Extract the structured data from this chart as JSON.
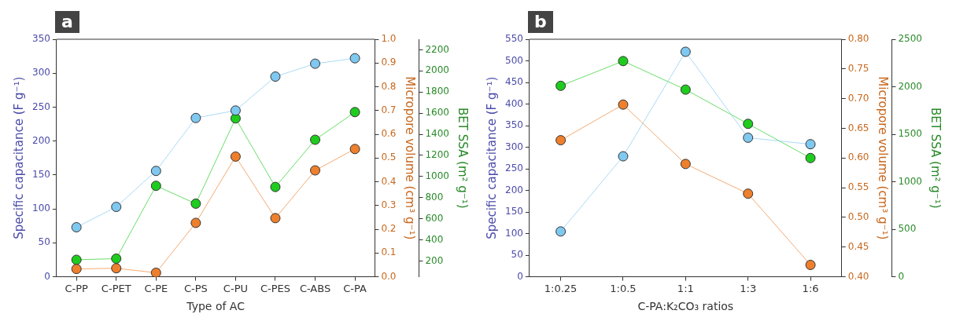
{
  "chart_data": [
    {
      "type": "line",
      "title": "a",
      "xlabel": "Type of AC",
      "ylabel": "Specific capacitance (F g⁻¹)",
      "y2label": "Micropore volume (cm³ g⁻¹)",
      "y3label": "BET SSA (m² g⁻¹)",
      "categories": [
        "C-PP",
        "C-PET",
        "C-PE",
        "C-PS",
        "C-PU",
        "C-PES",
        "C-ABS",
        "C-PA"
      ],
      "series": [
        {
          "color": "#7fc8f0",
          "axis": "y",
          "values": [
            73,
            103,
            156,
            234,
            245,
            295,
            314,
            322
          ]
        },
        {
          "color": "#ee7f2c",
          "axis": "y2",
          "values": [
            0.033,
            0.036,
            0.017,
            0.227,
            0.506,
            0.247,
            0.448,
            0.538
          ]
        },
        {
          "color": "#1ecc1e",
          "axis": "y3",
          "values": [
            211,
            222,
            912,
            743,
            1550,
            901,
            1348,
            1610
          ]
        }
      ],
      "ylim": [
        0,
        350
      ],
      "yticks": [
        0,
        50,
        100,
        150,
        200,
        250,
        300,
        350
      ],
      "y2lim": [
        0,
        1
      ],
      "y2ticks": [
        {
          "value": 0,
          "label": "0.0"
        },
        0.1,
        0.2,
        0.3,
        0.4,
        0.5,
        0.6,
        0.7,
        0.8,
        0.9,
        {
          "value": 1,
          "label": "1.0"
        }
      ],
      "y3lim": [
        50,
        2300
      ],
      "y3ticks": [
        200,
        400,
        600,
        800,
        1000,
        1200,
        1400,
        1600,
        1800,
        2000,
        2200
      ],
      "grid": false,
      "legend": false,
      "marker": "circle",
      "line_style": "solid"
    },
    {
      "type": "line",
      "title": "b",
      "xlabel": "C-PA:K₂CO₃ ratios",
      "ylabel": "Specific capacitance (F g⁻¹)",
      "y2label": "Micropore volume (cm³ g⁻¹)",
      "y3label": "BET SSA (m² g⁻¹)",
      "categories": [
        "1:0.25",
        "1:0.5",
        "1:1",
        "1:3",
        "1:6"
      ],
      "series": [
        {
          "color": "#7fc8f0",
          "axis": "y",
          "values": [
            105,
            279,
            521,
            322,
            307
          ]
        },
        {
          "color": "#ee7f2c",
          "axis": "y2",
          "values": [
            0.63,
            0.69,
            0.59,
            0.54,
            0.42
          ]
        },
        {
          "color": "#1ecc1e",
          "axis": "y3",
          "values": [
            2010,
            2270,
            1970,
            1610,
            1250
          ]
        }
      ],
      "ylim": [
        0,
        550
      ],
      "yticks": [
        0,
        50,
        100,
        150,
        200,
        250,
        300,
        350,
        400,
        450,
        500,
        550
      ],
      "y2lim": [
        0.4,
        0.8
      ],
      "y2ticks": [
        {
          "value": 0.4,
          "label": "0.40"
        },
        {
          "value": 0.45,
          "label": "0.45"
        },
        {
          "value": 0.5,
          "label": "0.50"
        },
        {
          "value": 0.55,
          "label": "0.55"
        },
        {
          "value": 0.6,
          "label": "0.60"
        },
        {
          "value": 0.65,
          "label": "0.65"
        },
        {
          "value": 0.7,
          "label": "0.70"
        },
        {
          "value": 0.75,
          "label": "0.75"
        },
        {
          "value": 0.8,
          "label": "0.80"
        }
      ],
      "y3lim": [
        0,
        2500
      ],
      "y3ticks": [
        0,
        500,
        1000,
        1500,
        2000,
        2500
      ],
      "grid": false,
      "legend": false,
      "marker": "circle",
      "line_style": "solid"
    }
  ]
}
